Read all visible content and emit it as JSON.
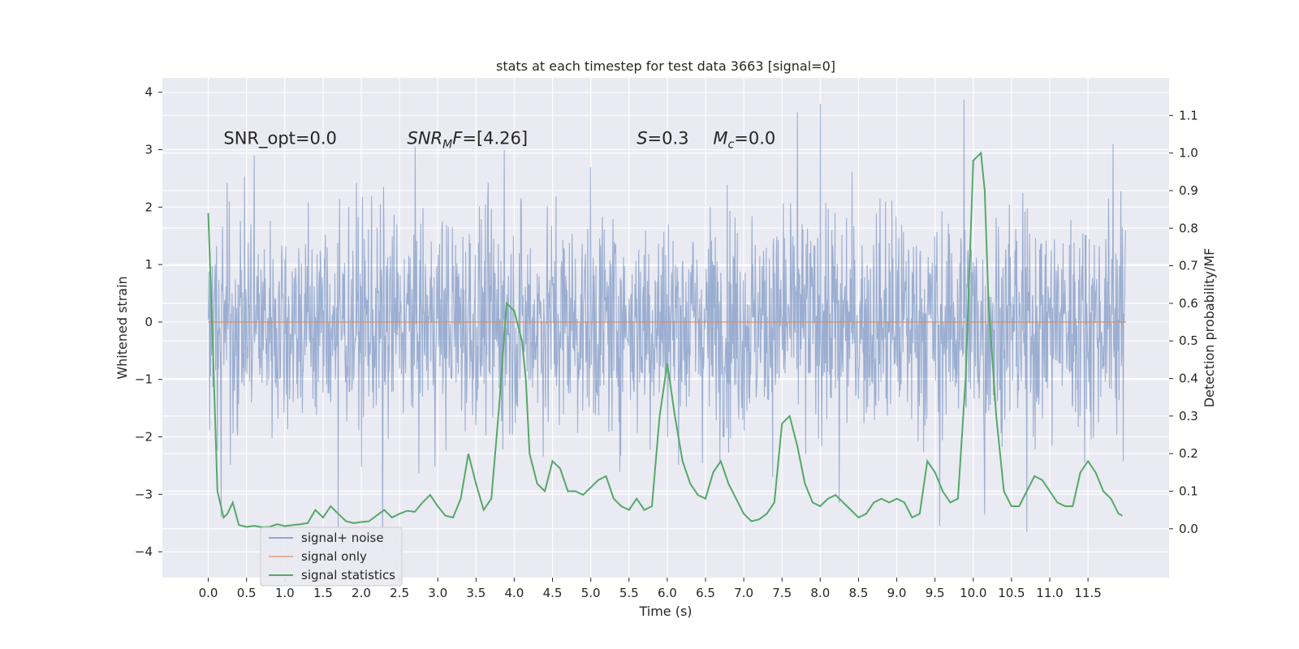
{
  "chart_data": {
    "type": "line",
    "title": "stats at each timestep for test data 3663 [signal=0]",
    "xlabel": "Time (s)",
    "ylabel": "Whitened strain",
    "y2label": "Detection probability/MF",
    "xlim": [
      -0.6,
      12.56
    ],
    "ylim": [
      -4.45,
      4.25
    ],
    "y2lim": [
      -0.13,
      1.2
    ],
    "xticks": [
      0.0,
      0.5,
      1.0,
      1.5,
      2.0,
      2.5,
      3.0,
      3.5,
      4.0,
      4.5,
      5.0,
      5.5,
      6.0,
      6.5,
      7.0,
      7.5,
      8.0,
      8.5,
      9.0,
      9.5,
      10.0,
      10.5,
      11.0,
      11.5
    ],
    "xtick_labels": [
      "0.0",
      "0.5",
      "1.0",
      "1.5",
      "2.0",
      "2.5",
      "3.0",
      "3.5",
      "4.0",
      "4.5",
      "5.0",
      "5.5",
      "6.0",
      "6.5",
      "7.0",
      "7.5",
      "8.0",
      "8.5",
      "9.0",
      "9.5",
      "10.0",
      "10.5",
      "11.0",
      "11.5"
    ],
    "yticks": [
      -4,
      -3,
      -2,
      -1,
      0,
      1,
      2,
      3,
      4
    ],
    "ytick_labels": [
      "−4",
      "−3",
      "−2",
      "−1",
      "0",
      "1",
      "2",
      "3",
      "4"
    ],
    "y2ticks": [
      0.0,
      0.1,
      0.2,
      0.3,
      0.4,
      0.5,
      0.6,
      0.7,
      0.8,
      0.9,
      1.0,
      1.1
    ],
    "y2tick_labels": [
      "0.0",
      "0.1",
      "0.2",
      "0.3",
      "0.4",
      "0.5",
      "0.6",
      "0.7",
      "0.8",
      "0.9",
      "1.0",
      "1.1"
    ],
    "grid": true,
    "legend_position": "lower-left",
    "annotations": [
      {
        "kind": "plain",
        "text": "SNR_opt=0.0",
        "x": 0.2,
        "y": 3.1
      },
      {
        "kind": "math",
        "main": "SNR",
        "sub": "M",
        "rest": "F",
        "suffix": "=[4.26]",
        "x": 2.6,
        "y": 3.1
      },
      {
        "kind": "math",
        "main": "S",
        "sub": "",
        "rest": "",
        "suffix": "=0.3",
        "x": 5.6,
        "y": 3.1
      },
      {
        "kind": "math",
        "main": "M",
        "sub": "c",
        "rest": "",
        "suffix": "=0.0",
        "x": 6.6,
        "y": 3.1
      }
    ],
    "series": [
      {
        "name": "signal+ noise",
        "axis": "left",
        "color": "#4c72b0",
        "style": "dense-noise",
        "x_range": [
          0.0,
          11.99
        ],
        "band": {
          "core_low": -1.35,
          "core_high": 1.15,
          "extreme_low": -3.65,
          "extreme_high": 3.87
        },
        "peaks": [
          {
            "x": 8.0,
            "y": 3.8
          },
          {
            "x": 9.88,
            "y": 3.87
          },
          {
            "x": 7.7,
            "y": 3.65
          },
          {
            "x": 11.83,
            "y": 3.1
          },
          {
            "x": 0.6,
            "y": 2.9
          },
          {
            "x": 3.87,
            "y": 3.0
          },
          {
            "x": 1.7,
            "y": -3.6
          },
          {
            "x": 10.7,
            "y": -3.65
          },
          {
            "x": 2.28,
            "y": -4.0
          },
          {
            "x": 9.56,
            "y": -3.55
          },
          {
            "x": 0.17,
            "y": -3.4
          },
          {
            "x": 10.15,
            "y": -3.35
          },
          {
            "x": 8.25,
            "y": -3.15
          }
        ]
      },
      {
        "name": "signal only",
        "axis": "left",
        "color": "#dd8452",
        "x": [
          0.0,
          12.0
        ],
        "y": [
          0.0,
          0.0
        ]
      },
      {
        "name": "signal statistics",
        "axis": "right",
        "color": "#55a868",
        "x": [
          0.0,
          0.05,
          0.12,
          0.2,
          0.25,
          0.32,
          0.4,
          0.5,
          0.6,
          0.7,
          0.8,
          0.9,
          1.0,
          1.1,
          1.2,
          1.3,
          1.4,
          1.5,
          1.6,
          1.7,
          1.8,
          1.9,
          2.0,
          2.1,
          2.2,
          2.3,
          2.4,
          2.5,
          2.6,
          2.7,
          2.8,
          2.9,
          3.0,
          3.1,
          3.2,
          3.3,
          3.4,
          3.5,
          3.6,
          3.7,
          3.8,
          3.9,
          4.0,
          4.1,
          4.15,
          4.2,
          4.3,
          4.4,
          4.5,
          4.6,
          4.7,
          4.8,
          4.9,
          5.0,
          5.1,
          5.2,
          5.3,
          5.4,
          5.5,
          5.6,
          5.7,
          5.8,
          5.9,
          6.0,
          6.1,
          6.2,
          6.3,
          6.4,
          6.5,
          6.6,
          6.7,
          6.8,
          6.9,
          7.0,
          7.1,
          7.2,
          7.3,
          7.4,
          7.5,
          7.6,
          7.7,
          7.8,
          7.9,
          8.0,
          8.1,
          8.2,
          8.3,
          8.4,
          8.5,
          8.6,
          8.7,
          8.8,
          8.9,
          9.0,
          9.1,
          9.2,
          9.3,
          9.4,
          9.5,
          9.6,
          9.7,
          9.8,
          9.9,
          10.0,
          10.1,
          10.15,
          10.2,
          10.3,
          10.4,
          10.5,
          10.6,
          10.7,
          10.8,
          10.9,
          11.0,
          11.1,
          11.2,
          11.3,
          11.4,
          11.5,
          11.6,
          11.7,
          11.8,
          11.9,
          11.95
        ],
        "y": [
          0.84,
          0.55,
          0.1,
          0.03,
          0.04,
          0.07,
          0.01,
          0.005,
          0.008,
          0.004,
          0.005,
          0.012,
          0.007,
          0.01,
          0.012,
          0.015,
          0.05,
          0.03,
          0.06,
          0.04,
          0.02,
          0.015,
          0.018,
          0.02,
          0.035,
          0.05,
          0.03,
          0.04,
          0.048,
          0.045,
          0.07,
          0.09,
          0.06,
          0.035,
          0.03,
          0.08,
          0.2,
          0.12,
          0.05,
          0.08,
          0.32,
          0.6,
          0.58,
          0.5,
          0.4,
          0.2,
          0.12,
          0.1,
          0.18,
          0.16,
          0.1,
          0.1,
          0.09,
          0.11,
          0.13,
          0.14,
          0.08,
          0.06,
          0.05,
          0.08,
          0.05,
          0.06,
          0.3,
          0.44,
          0.3,
          0.18,
          0.12,
          0.09,
          0.08,
          0.15,
          0.18,
          0.12,
          0.08,
          0.04,
          0.02,
          0.025,
          0.04,
          0.07,
          0.28,
          0.3,
          0.22,
          0.12,
          0.07,
          0.06,
          0.08,
          0.09,
          0.07,
          0.05,
          0.03,
          0.04,
          0.07,
          0.08,
          0.07,
          0.08,
          0.07,
          0.03,
          0.04,
          0.18,
          0.15,
          0.1,
          0.07,
          0.08,
          0.4,
          0.98,
          1.0,
          0.9,
          0.6,
          0.3,
          0.1,
          0.06,
          0.06,
          0.1,
          0.14,
          0.13,
          0.1,
          0.07,
          0.06,
          0.06,
          0.15,
          0.18,
          0.15,
          0.1,
          0.08,
          0.04,
          0.035
        ]
      }
    ]
  }
}
